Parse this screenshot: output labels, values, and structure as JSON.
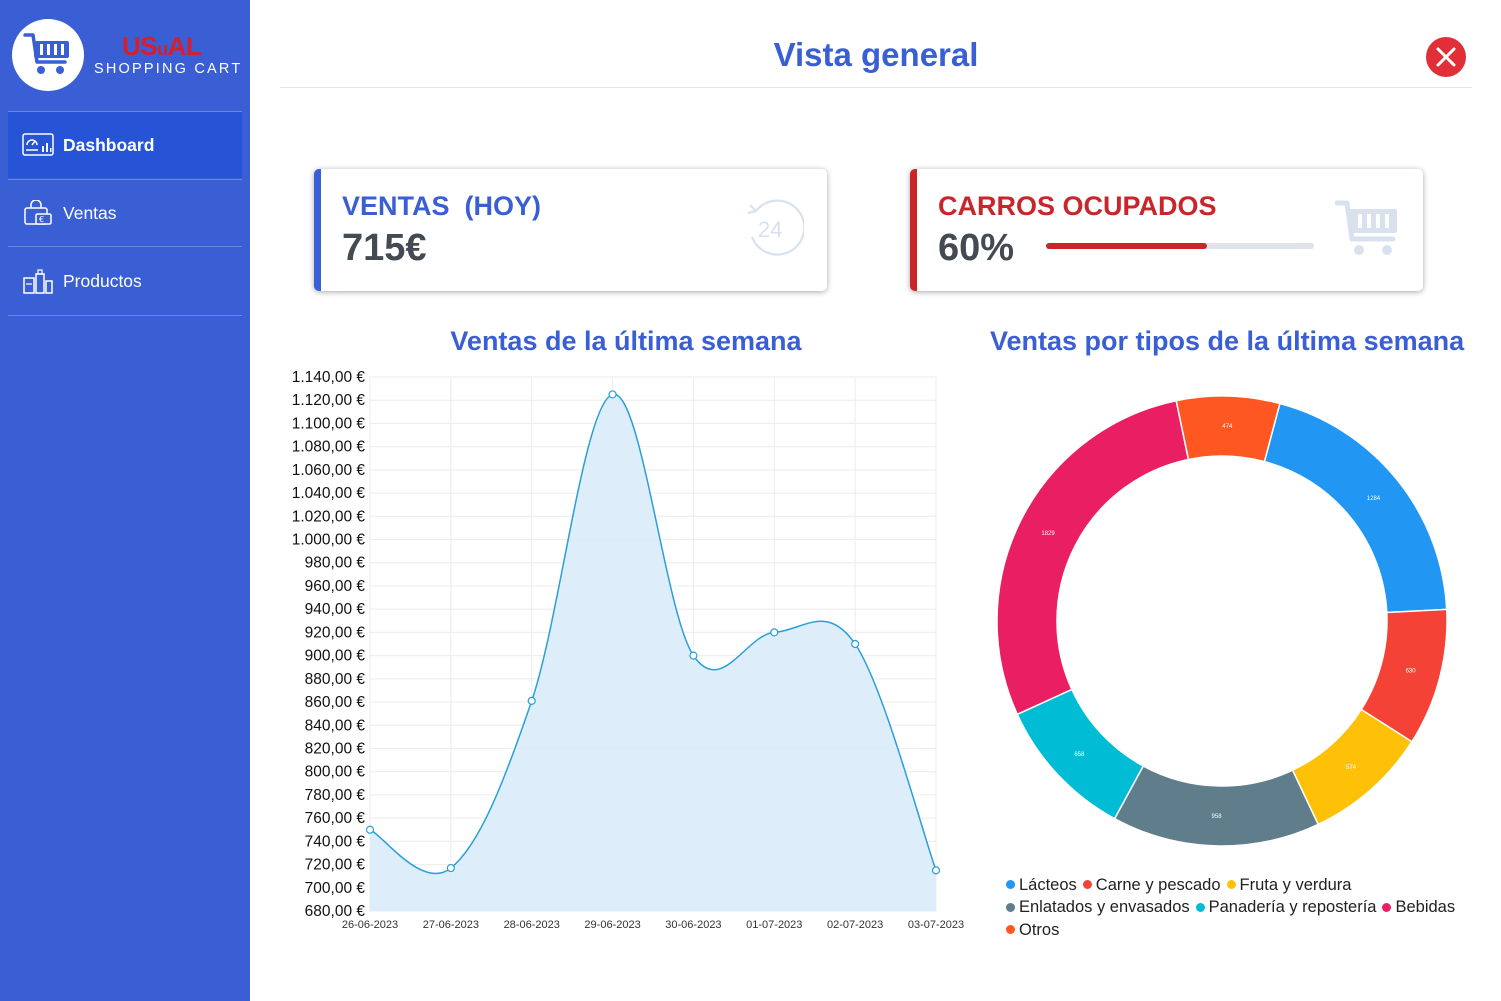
{
  "brand": {
    "title_us": "US",
    "title_u": "u",
    "title_al": "AL",
    "subtitle": "SHOPPING CART"
  },
  "sidebar": {
    "items": [
      {
        "label": "Dashboard",
        "icon": "dashboard-icon",
        "active": true
      },
      {
        "label": "Ventas",
        "icon": "sales-bag-icon",
        "active": false
      },
      {
        "label": "Productos",
        "icon": "products-icon",
        "active": false
      }
    ]
  },
  "header": {
    "title": "Vista general"
  },
  "cards": {
    "sales": {
      "label": "VENTAS  (HOY)",
      "value": "715€",
      "icon": "clock-24-icon"
    },
    "carts": {
      "label": "CARROS OCUPADOS",
      "value": "60%",
      "progress": 0.6,
      "icon": "shopping-cart-icon"
    }
  },
  "colors": {
    "primary": "#3a5fd4",
    "danger": "#c9262c",
    "line": "#2a9fd6",
    "area": "#d9ecf9"
  },
  "chart_data": [
    {
      "type": "line",
      "title": "Ventas de la última semana",
      "x": [
        "26-06-2023",
        "27-06-2023",
        "28-06-2023",
        "29-06-2023",
        "30-06-2023",
        "01-07-2023",
        "02-07-2023",
        "03-07-2023"
      ],
      "values": [
        750,
        717,
        861,
        1125,
        900,
        920,
        910,
        715
      ],
      "ylim": [
        680,
        1140
      ],
      "ytick_step": 20,
      "ytick_labels": [
        "1.140,00 €",
        "1.120,00 €",
        "1.100,00 €",
        "1.080,00 €",
        "1.060,00 €",
        "1.040,00 €",
        "1.020,00 €",
        "1.000,00 €",
        "980,00 €",
        "960,00 €",
        "940,00 €",
        "920,00 €",
        "900,00 €",
        "880,00 €",
        "860,00 €",
        "840,00 €",
        "820,00 €",
        "800,00 €",
        "780,00 €",
        "760,00 €",
        "740,00 €",
        "720,00 €",
        "700,00 €",
        "680,00 €"
      ],
      "grid": true,
      "fill": true
    },
    {
      "type": "pie",
      "title": "Ventas por tipos de la última semana",
      "labels": [
        "Lácteos",
        "Carne y pescado",
        "Fruta y verdura",
        "Enlatados y envasados",
        "Panadería y repostería",
        "Bebidas",
        "Otros"
      ],
      "values": [
        1284,
        630,
        574,
        958,
        658,
        1829,
        474
      ],
      "value_labels": [
        "1284",
        "630",
        "574",
        "958",
        "658",
        "1829",
        "474"
      ],
      "colors": [
        "#2196f3",
        "#f44336",
        "#ffc107",
        "#607d8b",
        "#00bcd4",
        "#e91e63",
        "#ff5722"
      ],
      "legend_position": "bottom"
    }
  ]
}
